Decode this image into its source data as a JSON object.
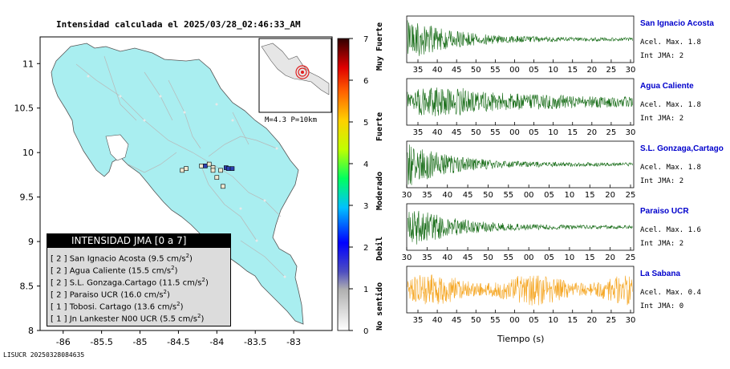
{
  "map": {
    "title": "Intensidad calculada el 2025/03/28_02:46:33_AM",
    "footer_id": "LISUCR 20250328084635",
    "x_ticks": [
      "-86",
      "-85.5",
      "-85",
      "-84.5",
      "-84",
      "-83.5",
      "-83"
    ],
    "y_ticks": [
      "11",
      "10.5",
      "10",
      "9.5",
      "9",
      "8.5",
      "8"
    ],
    "inset_label": "M=4.3 P=10km"
  },
  "legend": {
    "title": "INTENSIDAD JMA [0 a 7]",
    "rows": [
      {
        "jma": "[ 2 ]",
        "station": "San Ignacio Acosta",
        "accel": "(9.5 cm/s",
        "unit_sup": "2",
        "close": ")"
      },
      {
        "jma": "[ 2 ]",
        "station": "Agua Caliente",
        "accel": "(15.5 cm/s",
        "unit_sup": "2",
        "close": ")"
      },
      {
        "jma": "[ 2 ]",
        "station": "S.L. Gonzaga.Cartago",
        "accel": "(11.5 cm/s",
        "unit_sup": "2",
        "close": ")"
      },
      {
        "jma": "[ 2 ]",
        "station": "Paraiso UCR",
        "accel": "(16.0 cm/s",
        "unit_sup": "2",
        "close": ")"
      },
      {
        "jma": "[ 1 ]",
        "station": "Tobosi. Cartago",
        "accel": "(13.6 cm/s",
        "unit_sup": "2",
        "close": ")"
      },
      {
        "jma": "[ 1 ]",
        "station": "Jn Lankester N00 UCR",
        "accel": "(5.5 cm/s",
        "unit_sup": "2",
        "close": ")"
      }
    ]
  },
  "colorbar": {
    "ticks": [
      "0",
      "1",
      "2",
      "3",
      "4",
      "5",
      "6",
      "7"
    ],
    "categories": [
      "No sentido",
      "Debil",
      "Moderado",
      "Fuerte",
      "Muy Fuerte"
    ]
  },
  "waveforms": {
    "xlabel": "Tiempo (s)",
    "stations": [
      {
        "name": "San Ignacio Acosta",
        "accel": "Acel. Max. 1.8",
        "jma": "Int JMA: 2",
        "color": "#1a6e1a",
        "ticks": [
          "35",
          "40",
          "45",
          "50",
          "55",
          "00",
          "05",
          "10",
          "15",
          "20",
          "25",
          "30"
        ]
      },
      {
        "name": "Agua Caliente",
        "accel": "Acel. Max. 1.8",
        "jma": "Int JMA: 2",
        "color": "#1a6e1a",
        "ticks": [
          "35",
          "40",
          "45",
          "50",
          "55",
          "00",
          "05",
          "10",
          "15",
          "20",
          "25",
          "30"
        ]
      },
      {
        "name": "S.L. Gonzaga,Cartago",
        "accel": "Acel. Max. 1.8",
        "jma": "Int JMA: 2",
        "color": "#1a6e1a",
        "ticks": [
          "30",
          "35",
          "40",
          "45",
          "50",
          "55",
          "00",
          "05",
          "10",
          "15",
          "20",
          "25"
        ]
      },
      {
        "name": "Paraiso UCR",
        "accel": "Acel. Max. 1.6",
        "jma": "Int JMA: 2",
        "color": "#1a6e1a",
        "ticks": [
          "30",
          "35",
          "40",
          "45",
          "50",
          "55",
          "00",
          "05",
          "10",
          "15",
          "20",
          "25"
        ]
      },
      {
        "name": "La Sabana",
        "accel": "Acel. Max. 0.4",
        "jma": "Int JMA: 0",
        "color": "#f5a623",
        "ticks": [
          "35",
          "40",
          "45",
          "50",
          "55",
          "00",
          "05",
          "10",
          "15",
          "20",
          "25",
          "30"
        ]
      }
    ]
  },
  "chart_data": [
    {
      "type": "scatter",
      "title": "Intensidad calculada el 2025/03/28_02:46:33_AM",
      "xlabel": "",
      "ylabel": "",
      "xlim": [
        -86.3,
        -82.5
      ],
      "ylim": [
        8,
        11.3
      ],
      "x": [
        -84.45,
        -84.4,
        -84.2,
        -84.15,
        -84.1,
        -84.05,
        -84.05,
        -83.95,
        -83.88,
        -83.85,
        -83.8,
        -83.92,
        -84.0
      ],
      "y": [
        9.8,
        9.82,
        9.85,
        9.85,
        9.87,
        9.83,
        9.8,
        9.8,
        9.83,
        9.82,
        9.82,
        9.62,
        9.72
      ],
      "intensity": [
        1,
        1,
        1,
        2,
        1,
        1,
        1,
        1,
        2,
        2,
        2,
        1,
        1
      ],
      "colorbar_range": [
        0,
        7
      ]
    }
  ]
}
